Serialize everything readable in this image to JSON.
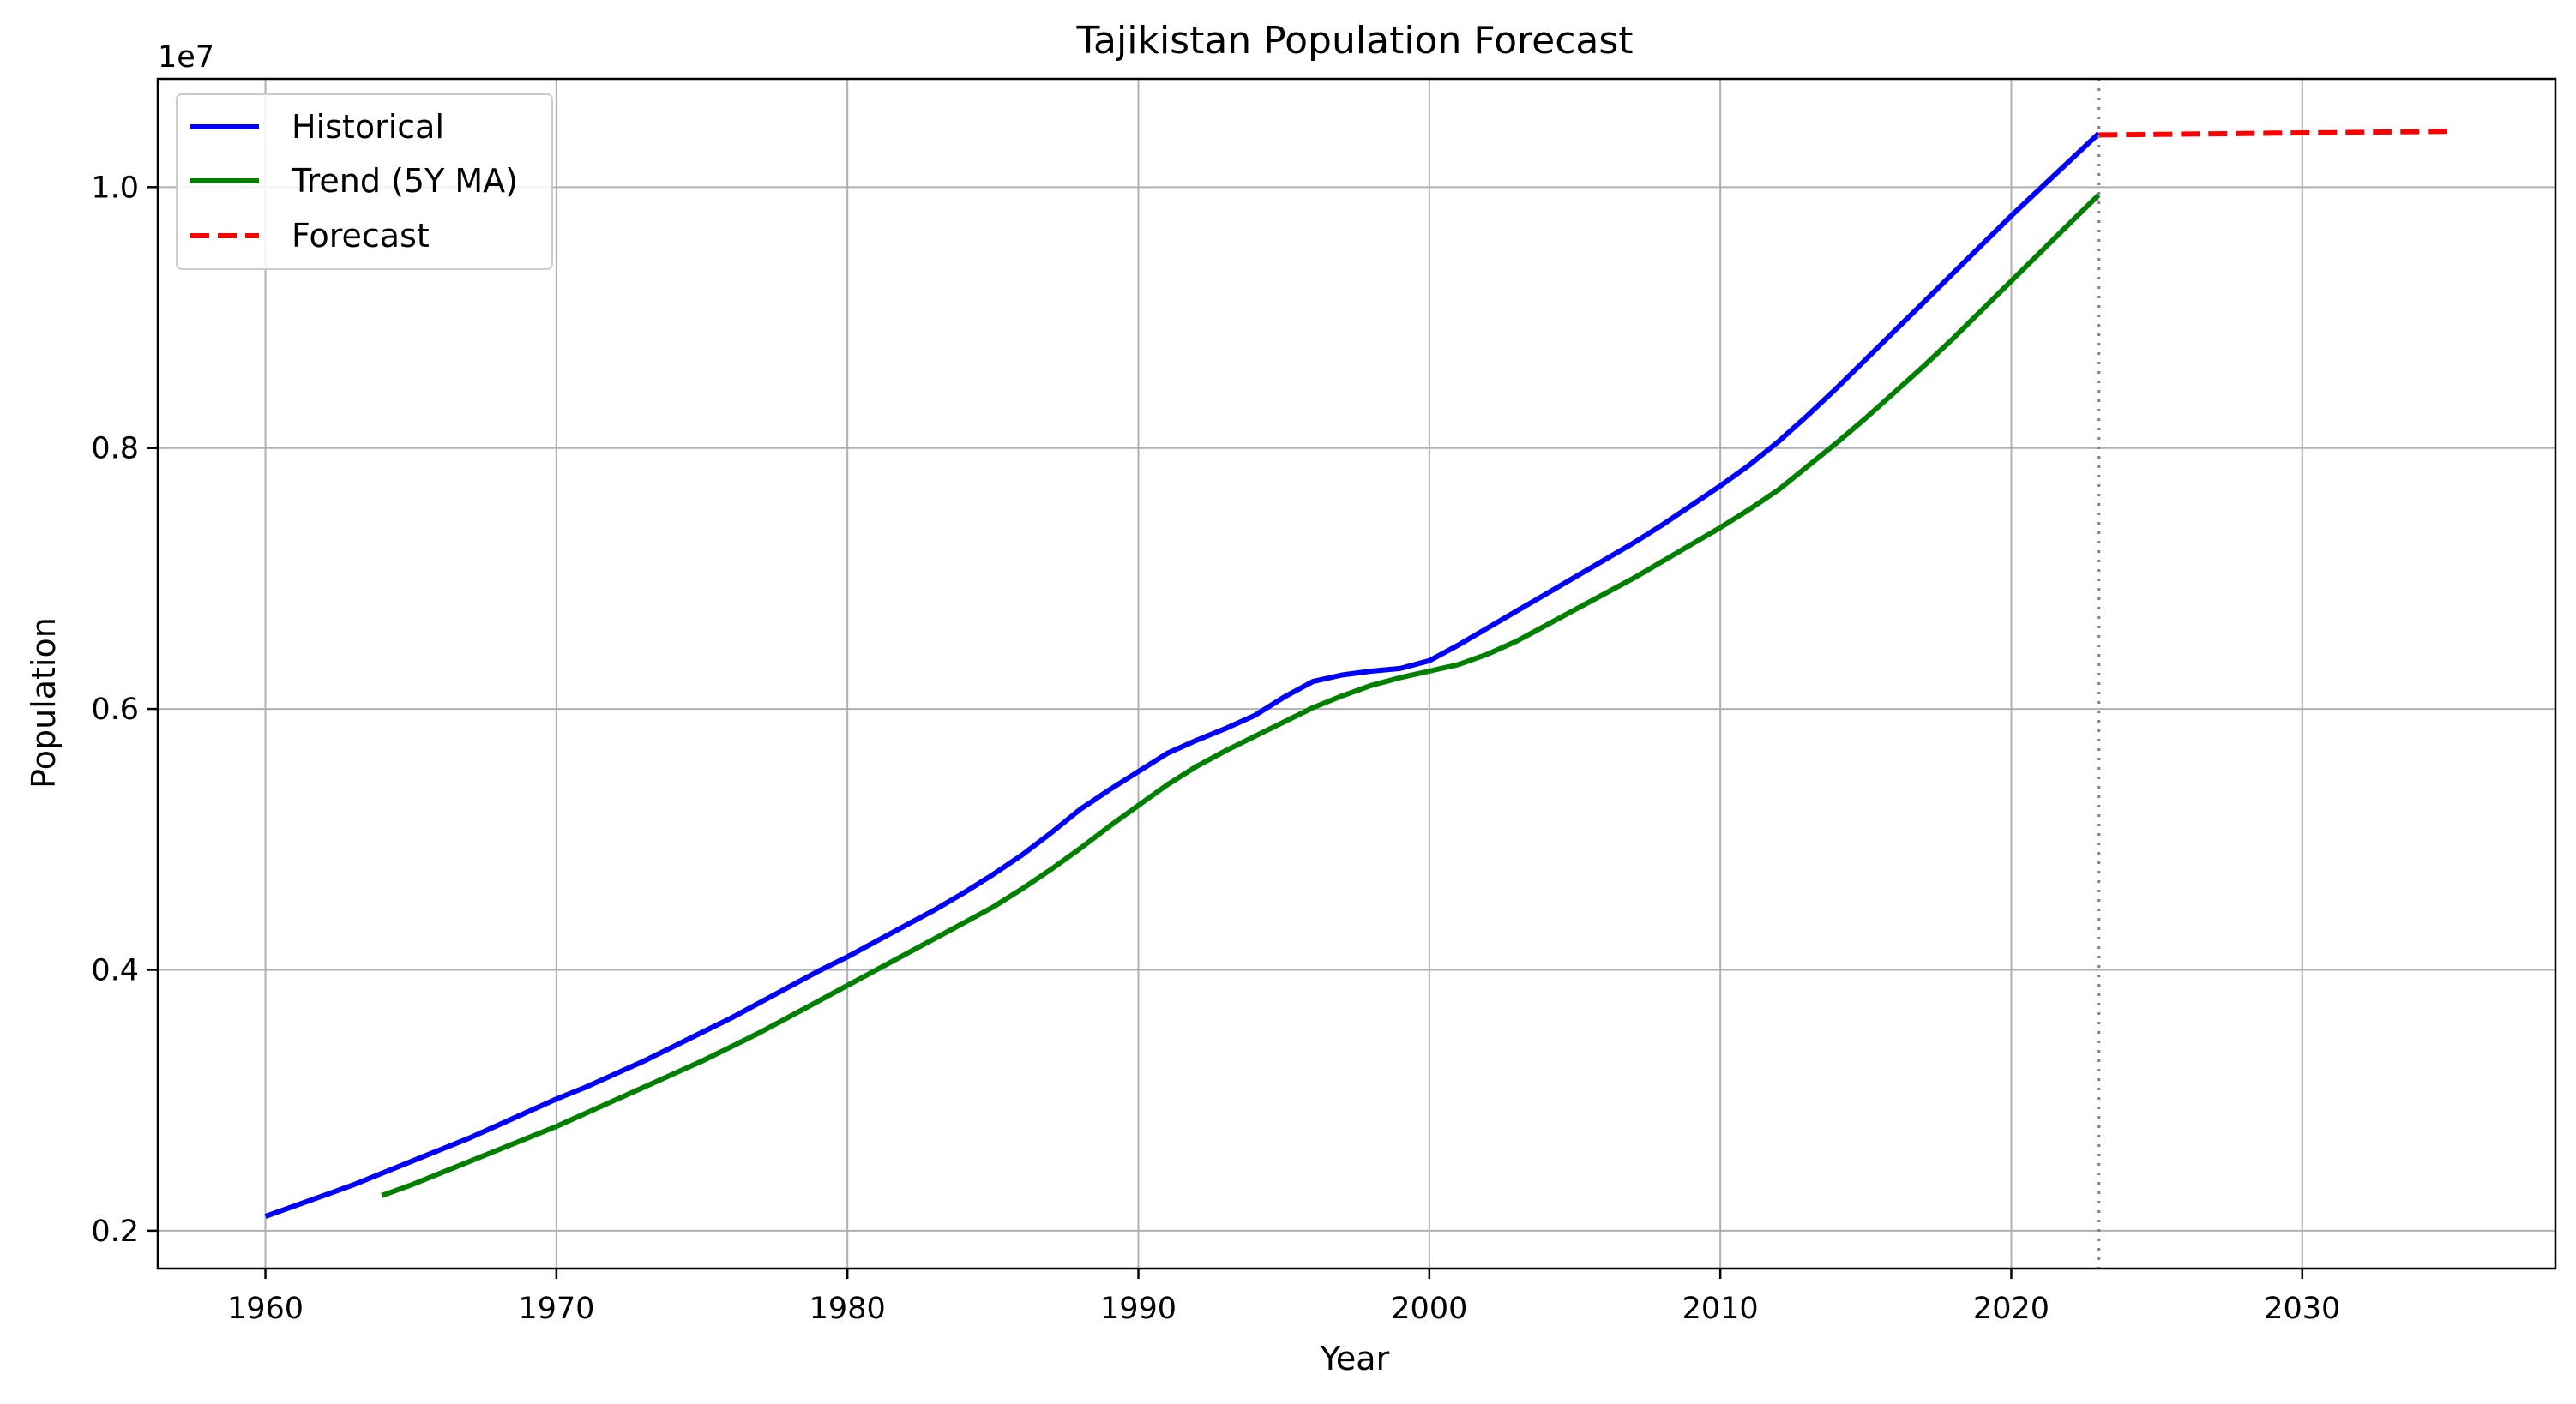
{
  "chart_data": {
    "type": "line",
    "title": "Tajikistan Population Forecast",
    "xlabel": "Year",
    "ylabel": "Population",
    "y_offset_text": "1e7",
    "y_scale": 10000000,
    "xlim": [
      1956.3,
      2038.7
    ],
    "ylim": [
      1710000,
      10830000
    ],
    "x_ticks": [
      1960,
      1970,
      1980,
      1990,
      2000,
      2010,
      2020,
      2030
    ],
    "y_ticks": [
      2000000,
      4000000,
      6000000,
      8000000,
      10000000
    ],
    "y_tick_labels": [
      "0.2",
      "0.4",
      "0.6",
      "0.8",
      "1.0"
    ],
    "grid": true,
    "legend_position": "top-left",
    "forecast_start_marker": 2023,
    "series": [
      {
        "name": "Historical",
        "color": "#0000ff",
        "style": "solid",
        "x": [
          1960,
          1961,
          1962,
          1963,
          1964,
          1965,
          1966,
          1967,
          1968,
          1969,
          1970,
          1971,
          1972,
          1973,
          1974,
          1975,
          1976,
          1977,
          1978,
          1979,
          1980,
          1981,
          1982,
          1983,
          1984,
          1985,
          1986,
          1987,
          1988,
          1989,
          1990,
          1991,
          1992,
          1993,
          1994,
          1995,
          1996,
          1997,
          1998,
          1999,
          2000,
          2001,
          2002,
          2003,
          2004,
          2005,
          2006,
          2007,
          2008,
          2009,
          2010,
          2011,
          2012,
          2013,
          2014,
          2015,
          2016,
          2017,
          2018,
          2019,
          2020,
          2021,
          2022,
          2023
        ],
        "values": [
          2110000,
          2190000,
          2270000,
          2350000,
          2440000,
          2530000,
          2620000,
          2710000,
          2810000,
          2910000,
          3010000,
          3100000,
          3200000,
          3300000,
          3410000,
          3520000,
          3630000,
          3750000,
          3870000,
          3990000,
          4100000,
          4220000,
          4340000,
          4460000,
          4590000,
          4730000,
          4880000,
          5050000,
          5230000,
          5380000,
          5520000,
          5660000,
          5760000,
          5850000,
          5950000,
          6090000,
          6210000,
          6260000,
          6290000,
          6310000,
          6370000,
          6490000,
          6620000,
          6750000,
          6880000,
          7010000,
          7140000,
          7270000,
          7410000,
          7560000,
          7710000,
          7870000,
          8050000,
          8250000,
          8460000,
          8680000,
          8900000,
          9120000,
          9340000,
          9560000,
          9780000,
          9990000,
          10200000,
          10410000
        ]
      },
      {
        "name": "Trend (5Y MA)",
        "color": "#008000",
        "style": "solid",
        "x": [
          1964,
          1965,
          1966,
          1967,
          1968,
          1969,
          1970,
          1971,
          1972,
          1973,
          1974,
          1975,
          1976,
          1977,
          1978,
          1979,
          1980,
          1981,
          1982,
          1983,
          1984,
          1985,
          1986,
          1987,
          1988,
          1989,
          1990,
          1991,
          1992,
          1993,
          1994,
          1995,
          1996,
          1997,
          1998,
          1999,
          2000,
          2001,
          2002,
          2003,
          2004,
          2005,
          2006,
          2007,
          2008,
          2009,
          2010,
          2011,
          2012,
          2013,
          2014,
          2015,
          2016,
          2017,
          2018,
          2019,
          2020,
          2021,
          2022,
          2023
        ],
        "values": [
          2270000,
          2350000,
          2440000,
          2530000,
          2620000,
          2710000,
          2800000,
          2900000,
          3000000,
          3100000,
          3200000,
          3300000,
          3410000,
          3520000,
          3640000,
          3760000,
          3880000,
          4000000,
          4120000,
          4240000,
          4360000,
          4480000,
          4620000,
          4770000,
          4930000,
          5100000,
          5260000,
          5420000,
          5560000,
          5680000,
          5790000,
          5900000,
          6010000,
          6100000,
          6180000,
          6240000,
          6290000,
          6340000,
          6420000,
          6520000,
          6640000,
          6760000,
          6880000,
          7000000,
          7130000,
          7260000,
          7390000,
          7530000,
          7680000,
          7860000,
          8040000,
          8230000,
          8430000,
          8630000,
          8840000,
          9060000,
          9280000,
          9500000,
          9720000,
          9940000
        ]
      },
      {
        "name": "Forecast",
        "color": "#ff0000",
        "style": "dashed",
        "x": [
          2023,
          2024,
          2025,
          2026,
          2027,
          2028,
          2029,
          2030,
          2031,
          2032,
          2033,
          2034,
          2035
        ],
        "values": [
          10400000,
          10402000,
          10404000,
          10407000,
          10409000,
          10411000,
          10414000,
          10416000,
          10418000,
          10420000,
          10423000,
          10425000,
          10427000
        ]
      }
    ]
  }
}
